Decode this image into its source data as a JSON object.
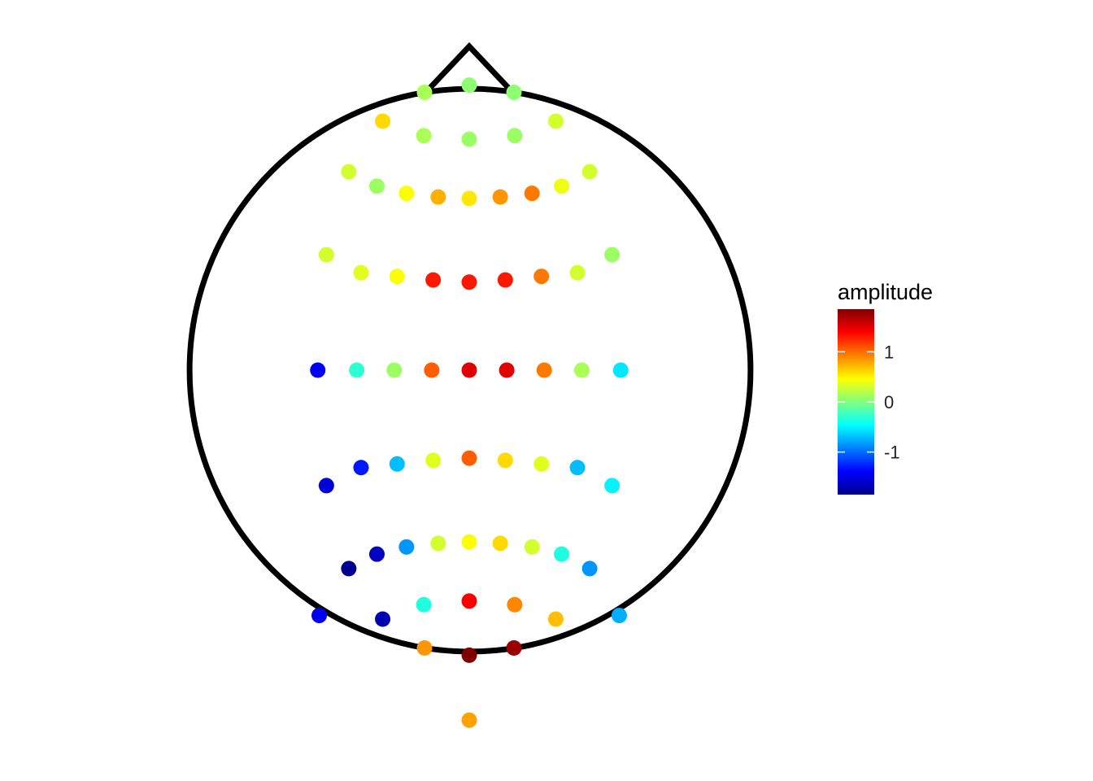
{
  "chart_data": {
    "type": "scatter",
    "title": "",
    "xlabel": "",
    "ylabel": "",
    "grid": false,
    "xlim": [
      -4,
      4
    ],
    "ylim": [
      -4.8,
      4.2
    ],
    "head_outline": {
      "radius": 3.9,
      "nose": true
    },
    "colorbar": {
      "title": "amplitude",
      "ticks": [
        1,
        0,
        -1
      ],
      "tick_labels": [
        "1",
        "0",
        "-1"
      ],
      "range": [
        -1.85,
        1.85
      ],
      "colors": [
        "#00008F",
        "#0000FF",
        "#0080FF",
        "#00FFFF",
        "#80FF80",
        "#FFFF00",
        "#FF8000",
        "#FF0000",
        "#800000"
      ],
      "placement": "right"
    },
    "points": [
      {
        "x": -0.62,
        "y": 3.85,
        "value": 0.15
      },
      {
        "x": 0.0,
        "y": 3.95,
        "value": 0.05
      },
      {
        "x": 0.62,
        "y": 3.85,
        "value": 0.05
      },
      {
        "x": -1.2,
        "y": 3.45,
        "value": 0.6
      },
      {
        "x": 1.2,
        "y": 3.45,
        "value": 0.3
      },
      {
        "x": -0.63,
        "y": 3.25,
        "value": 0.15
      },
      {
        "x": 0.0,
        "y": 3.2,
        "value": 0.1
      },
      {
        "x": 0.63,
        "y": 3.25,
        "value": 0.1
      },
      {
        "x": -1.67,
        "y": 2.75,
        "value": 0.3
      },
      {
        "x": 1.67,
        "y": 2.75,
        "value": 0.3
      },
      {
        "x": -1.28,
        "y": 2.55,
        "value": 0.1
      },
      {
        "x": -0.87,
        "y": 2.45,
        "value": 0.45
      },
      {
        "x": -0.43,
        "y": 2.4,
        "value": 0.75
      },
      {
        "x": 0.0,
        "y": 2.38,
        "value": 0.55
      },
      {
        "x": 0.43,
        "y": 2.4,
        "value": 0.85
      },
      {
        "x": 0.87,
        "y": 2.45,
        "value": 0.95
      },
      {
        "x": 1.28,
        "y": 2.55,
        "value": 0.4
      },
      {
        "x": -1.98,
        "y": 1.6,
        "value": 0.3
      },
      {
        "x": -1.5,
        "y": 1.35,
        "value": 0.35
      },
      {
        "x": -1.0,
        "y": 1.3,
        "value": 0.45
      },
      {
        "x": -0.5,
        "y": 1.25,
        "value": 1.3
      },
      {
        "x": 0.0,
        "y": 1.22,
        "value": 1.3
      },
      {
        "x": 0.5,
        "y": 1.25,
        "value": 1.3
      },
      {
        "x": 1.0,
        "y": 1.3,
        "value": 0.95
      },
      {
        "x": 1.5,
        "y": 1.35,
        "value": 0.3
      },
      {
        "x": 1.98,
        "y": 1.6,
        "value": 0.1
      },
      {
        "x": -2.1,
        "y": 0.0,
        "value": -1.45
      },
      {
        "x": -1.56,
        "y": 0.0,
        "value": -0.3
      },
      {
        "x": -1.04,
        "y": 0.0,
        "value": 0.1
      },
      {
        "x": -0.52,
        "y": 0.0,
        "value": 1.05
      },
      {
        "x": 0.0,
        "y": 0.0,
        "value": 1.5
      },
      {
        "x": 0.52,
        "y": 0.0,
        "value": 1.5
      },
      {
        "x": 1.04,
        "y": 0.0,
        "value": 0.95
      },
      {
        "x": 1.56,
        "y": 0.0,
        "value": 0.15
      },
      {
        "x": 2.1,
        "y": 0.0,
        "value": -0.55
      },
      {
        "x": -1.98,
        "y": -1.6,
        "value": -1.55
      },
      {
        "x": -1.5,
        "y": -1.35,
        "value": -1.3
      },
      {
        "x": -1.0,
        "y": -1.3,
        "value": -0.7
      },
      {
        "x": -0.5,
        "y": -1.25,
        "value": 0.35
      },
      {
        "x": 0.0,
        "y": -1.22,
        "value": 1.05
      },
      {
        "x": 0.5,
        "y": -1.25,
        "value": 0.6
      },
      {
        "x": 1.0,
        "y": -1.3,
        "value": 0.35
      },
      {
        "x": 1.5,
        "y": -1.35,
        "value": -0.7
      },
      {
        "x": 1.98,
        "y": -1.6,
        "value": -0.5
      },
      {
        "x": -1.67,
        "y": -2.75,
        "value": -1.85
      },
      {
        "x": -1.28,
        "y": -2.55,
        "value": -1.65
      },
      {
        "x": -0.87,
        "y": -2.45,
        "value": -0.85
      },
      {
        "x": -0.43,
        "y": -2.4,
        "value": 0.3
      },
      {
        "x": 0.0,
        "y": -2.38,
        "value": 0.45
      },
      {
        "x": 0.43,
        "y": -2.4,
        "value": 0.6
      },
      {
        "x": 0.87,
        "y": -2.45,
        "value": 0.3
      },
      {
        "x": 1.28,
        "y": -2.55,
        "value": -0.35
      },
      {
        "x": 1.67,
        "y": -2.75,
        "value": -0.85
      },
      {
        "x": -2.08,
        "y": -3.4,
        "value": -1.45
      },
      {
        "x": -1.2,
        "y": -3.45,
        "value": -1.7
      },
      {
        "x": -0.63,
        "y": -3.25,
        "value": -0.35
      },
      {
        "x": 0.0,
        "y": -3.2,
        "value": 1.4
      },
      {
        "x": 0.63,
        "y": -3.25,
        "value": 0.9
      },
      {
        "x": 1.2,
        "y": -3.45,
        "value": 0.7
      },
      {
        "x": 2.08,
        "y": -3.4,
        "value": -0.75
      },
      {
        "x": -0.62,
        "y": -3.85,
        "value": 0.85
      },
      {
        "x": 0.0,
        "y": -3.95,
        "value": 1.85
      },
      {
        "x": 0.62,
        "y": -3.85,
        "value": 1.75
      },
      {
        "x": 0.0,
        "y": -4.85,
        "value": 0.8
      }
    ]
  }
}
